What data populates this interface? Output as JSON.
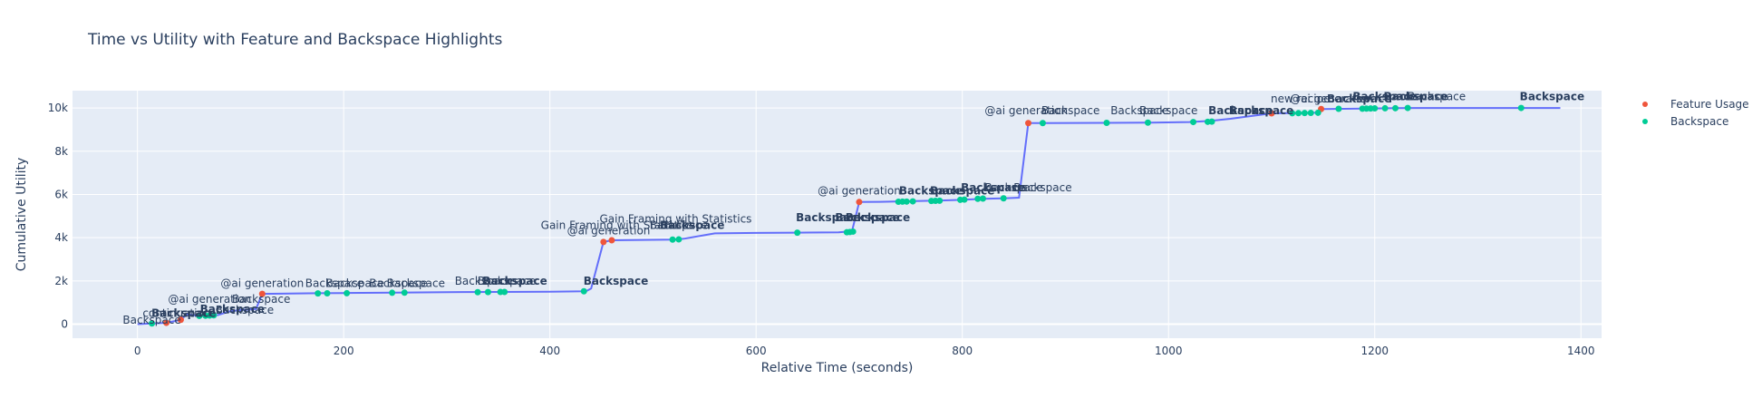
{
  "chart_data": {
    "type": "line",
    "title": "Time vs Utility with Feature and Backspace Highlights",
    "xlabel": "Relative Time (seconds)",
    "ylabel": "Cumulative Utility",
    "xlim": [
      -63,
      1420
    ],
    "ylim": [
      -650,
      10800
    ],
    "x_ticks": [
      0,
      200,
      400,
      600,
      800,
      1000,
      1200,
      1400
    ],
    "x_tick_labels": [
      "0",
      "200",
      "400",
      "600",
      "800",
      "1000",
      "1200",
      "1400"
    ],
    "y_ticks": [
      0,
      2000,
      4000,
      6000,
      8000,
      10000
    ],
    "y_tick_labels": [
      "0",
      "2k",
      "4k",
      "6k",
      "8k",
      "10k"
    ],
    "grid": true,
    "legend_position": "right",
    "colors": {
      "line": "#636efa",
      "feature": "#ef553b",
      "backspace": "#00cc96",
      "plot_bg": "#e5ecf6",
      "grid": "#ffffff",
      "text": "#2a3f5f"
    },
    "line": {
      "x": [
        0,
        14,
        28,
        42,
        48,
        60,
        70,
        78,
        90,
        100,
        115,
        121,
        140,
        175,
        200,
        250,
        300,
        350,
        400,
        435,
        440,
        452,
        460,
        480,
        500,
        520,
        530,
        560,
        600,
        640,
        680,
        693,
        700,
        720,
        740,
        760,
        780,
        800,
        820,
        840,
        855,
        864,
        880,
        940,
        980,
        1020,
        1040,
        1060,
        1100,
        1120,
        1145,
        1150,
        1170,
        1190,
        1200,
        1220,
        1240,
        1340,
        1380
      ],
      "y": [
        0,
        30,
        60,
        200,
        450,
        380,
        400,
        420,
        600,
        650,
        700,
        1400,
        1410,
        1430,
        1440,
        1460,
        1480,
        1490,
        1500,
        1520,
        1650,
        3800,
        3880,
        3890,
        3900,
        3910,
        3950,
        4200,
        4220,
        4230,
        4250,
        4300,
        5650,
        5660,
        5680,
        5700,
        5720,
        5750,
        5800,
        5820,
        5850,
        9300,
        9300,
        9310,
        9320,
        9350,
        9400,
        9500,
        9750,
        9760,
        9780,
        9950,
        9960,
        9970,
        9980,
        9990,
        10000,
        10000,
        10000
      ]
    },
    "series": [
      {
        "name": "Feature Usage",
        "x": [
          28,
          42,
          121,
          452,
          460,
          700,
          864,
          1100,
          1148
        ],
        "y": [
          60,
          200,
          1400,
          3800,
          3880,
          5650,
          9300,
          9750,
          9950
        ]
      },
      {
        "name": "Backspace",
        "x": [
          14,
          60,
          66,
          70,
          74,
          175,
          184,
          203,
          247,
          259,
          330,
          340,
          352,
          356,
          433,
          519,
          525,
          640,
          688,
          691,
          694,
          738,
          742,
          746,
          752,
          770,
          774,
          778,
          798,
          802,
          815,
          820,
          840,
          878,
          940,
          980,
          1024,
          1038,
          1042,
          1120,
          1126,
          1132,
          1138,
          1145,
          1165,
          1188,
          1192,
          1196,
          1200,
          1210,
          1220,
          1232,
          1342
        ],
        "y": [
          30,
          380,
          390,
          400,
          410,
          1420,
          1425,
          1430,
          1450,
          1455,
          1480,
          1485,
          1490,
          1490,
          1520,
          3910,
          3920,
          4230,
          4250,
          4260,
          4280,
          5660,
          5665,
          5670,
          5680,
          5700,
          5705,
          5710,
          5750,
          5760,
          5800,
          5810,
          5820,
          9300,
          9310,
          9320,
          9350,
          9360,
          9370,
          9755,
          9760,
          9765,
          9770,
          9780,
          9960,
          9965,
          9970,
          9975,
          9980,
          9985,
          9990,
          10000,
          10000
        ]
      }
    ],
    "annotations": [
      {
        "text": "Backspace",
        "x": 14,
        "y": 30,
        "bold": false
      },
      {
        "text": "Backspace",
        "x": 45,
        "y": 340,
        "bold": true
      },
      {
        "text": "continuation",
        "x": 38,
        "y": 340,
        "bold": false
      },
      {
        "text": "Backspace",
        "x": 92,
        "y": 520,
        "bold": true
      },
      {
        "text": "Backspace",
        "x": 104,
        "y": 480,
        "bold": false
      },
      {
        "text": "@ai generation",
        "x": 70,
        "y": 980,
        "bold": false
      },
      {
        "text": "Backspace",
        "x": 120,
        "y": 980,
        "bold": false
      },
      {
        "text": "@ai generation",
        "x": 121,
        "y": 1720,
        "bold": false
      },
      {
        "text": "Backspace",
        "x": 191,
        "y": 1720,
        "bold": false
      },
      {
        "text": "Backspace",
        "x": 211,
        "y": 1720,
        "bold": false
      },
      {
        "text": "Backspace",
        "x": 253,
        "y": 1720,
        "bold": false
      },
      {
        "text": "Backspace",
        "x": 270,
        "y": 1720,
        "bold": false
      },
      {
        "text": "Backspace",
        "x": 336,
        "y": 1820,
        "bold": false
      },
      {
        "text": "Backspace",
        "x": 358,
        "y": 1820,
        "bold": false
      },
      {
        "text": "Backspace",
        "x": 366,
        "y": 1820,
        "bold": true
      },
      {
        "text": "Backspace",
        "x": 464,
        "y": 1820,
        "bold": true
      },
      {
        "text": "Gain Framing with Statistics",
        "x": 465,
        "y": 4400,
        "bold": false
      },
      {
        "text": "@ai generation",
        "x": 457,
        "y": 4150,
        "bold": false
      },
      {
        "text": "Gain Framing with Statistics",
        "x": 522,
        "y": 4700,
        "bold": false
      },
      {
        "text": "Backspace",
        "x": 525,
        "y": 4400,
        "bold": false
      },
      {
        "text": "Backspace",
        "x": 538,
        "y": 4400,
        "bold": true
      },
      {
        "text": "Backspace",
        "x": 670,
        "y": 4760,
        "bold": true
      },
      {
        "text": "Backspace",
        "x": 708,
        "y": 4760,
        "bold": true
      },
      {
        "text": "Backspace",
        "x": 718,
        "y": 4760,
        "bold": true
      },
      {
        "text": "@ai generation",
        "x": 700,
        "y": 6000,
        "bold": false
      },
      {
        "text": "Backspace",
        "x": 770,
        "y": 6000,
        "bold": true
      },
      {
        "text": "Backspace",
        "x": 800,
        "y": 6000,
        "bold": true
      },
      {
        "text": "Backspace",
        "x": 830,
        "y": 6150,
        "bold": true
      },
      {
        "text": "Backspace",
        "x": 850,
        "y": 6150,
        "bold": false
      },
      {
        "text": "Backspace",
        "x": 878,
        "y": 6150,
        "bold": false
      },
      {
        "text": "@ai generation",
        "x": 862,
        "y": 9700,
        "bold": false
      },
      {
        "text": "Backspace",
        "x": 905,
        "y": 9700,
        "bold": false
      },
      {
        "text": "Backspace",
        "x": 972,
        "y": 9700,
        "bold": false
      },
      {
        "text": "Backspace",
        "x": 1000,
        "y": 9700,
        "bold": false
      },
      {
        "text": "Backspace",
        "x": 1070,
        "y": 9700,
        "bold": true
      },
      {
        "text": "Backspace",
        "x": 1090,
        "y": 9700,
        "bold": true
      },
      {
        "text": "new recipe",
        "x": 1128,
        "y": 10250,
        "bold": false
      },
      {
        "text": "@ai generation",
        "x": 1158,
        "y": 10250,
        "bold": false
      },
      {
        "text": "Backspace",
        "x": 1185,
        "y": 10250,
        "bold": true
      },
      {
        "text": "Backspace",
        "x": 1210,
        "y": 10350,
        "bold": true
      },
      {
        "text": "Backspace",
        "x": 1240,
        "y": 10350,
        "bold": true
      },
      {
        "text": "Backspace",
        "x": 1260,
        "y": 10350,
        "bold": false
      },
      {
        "text": "Backspace",
        "x": 1372,
        "y": 10350,
        "bold": true
      }
    ]
  }
}
